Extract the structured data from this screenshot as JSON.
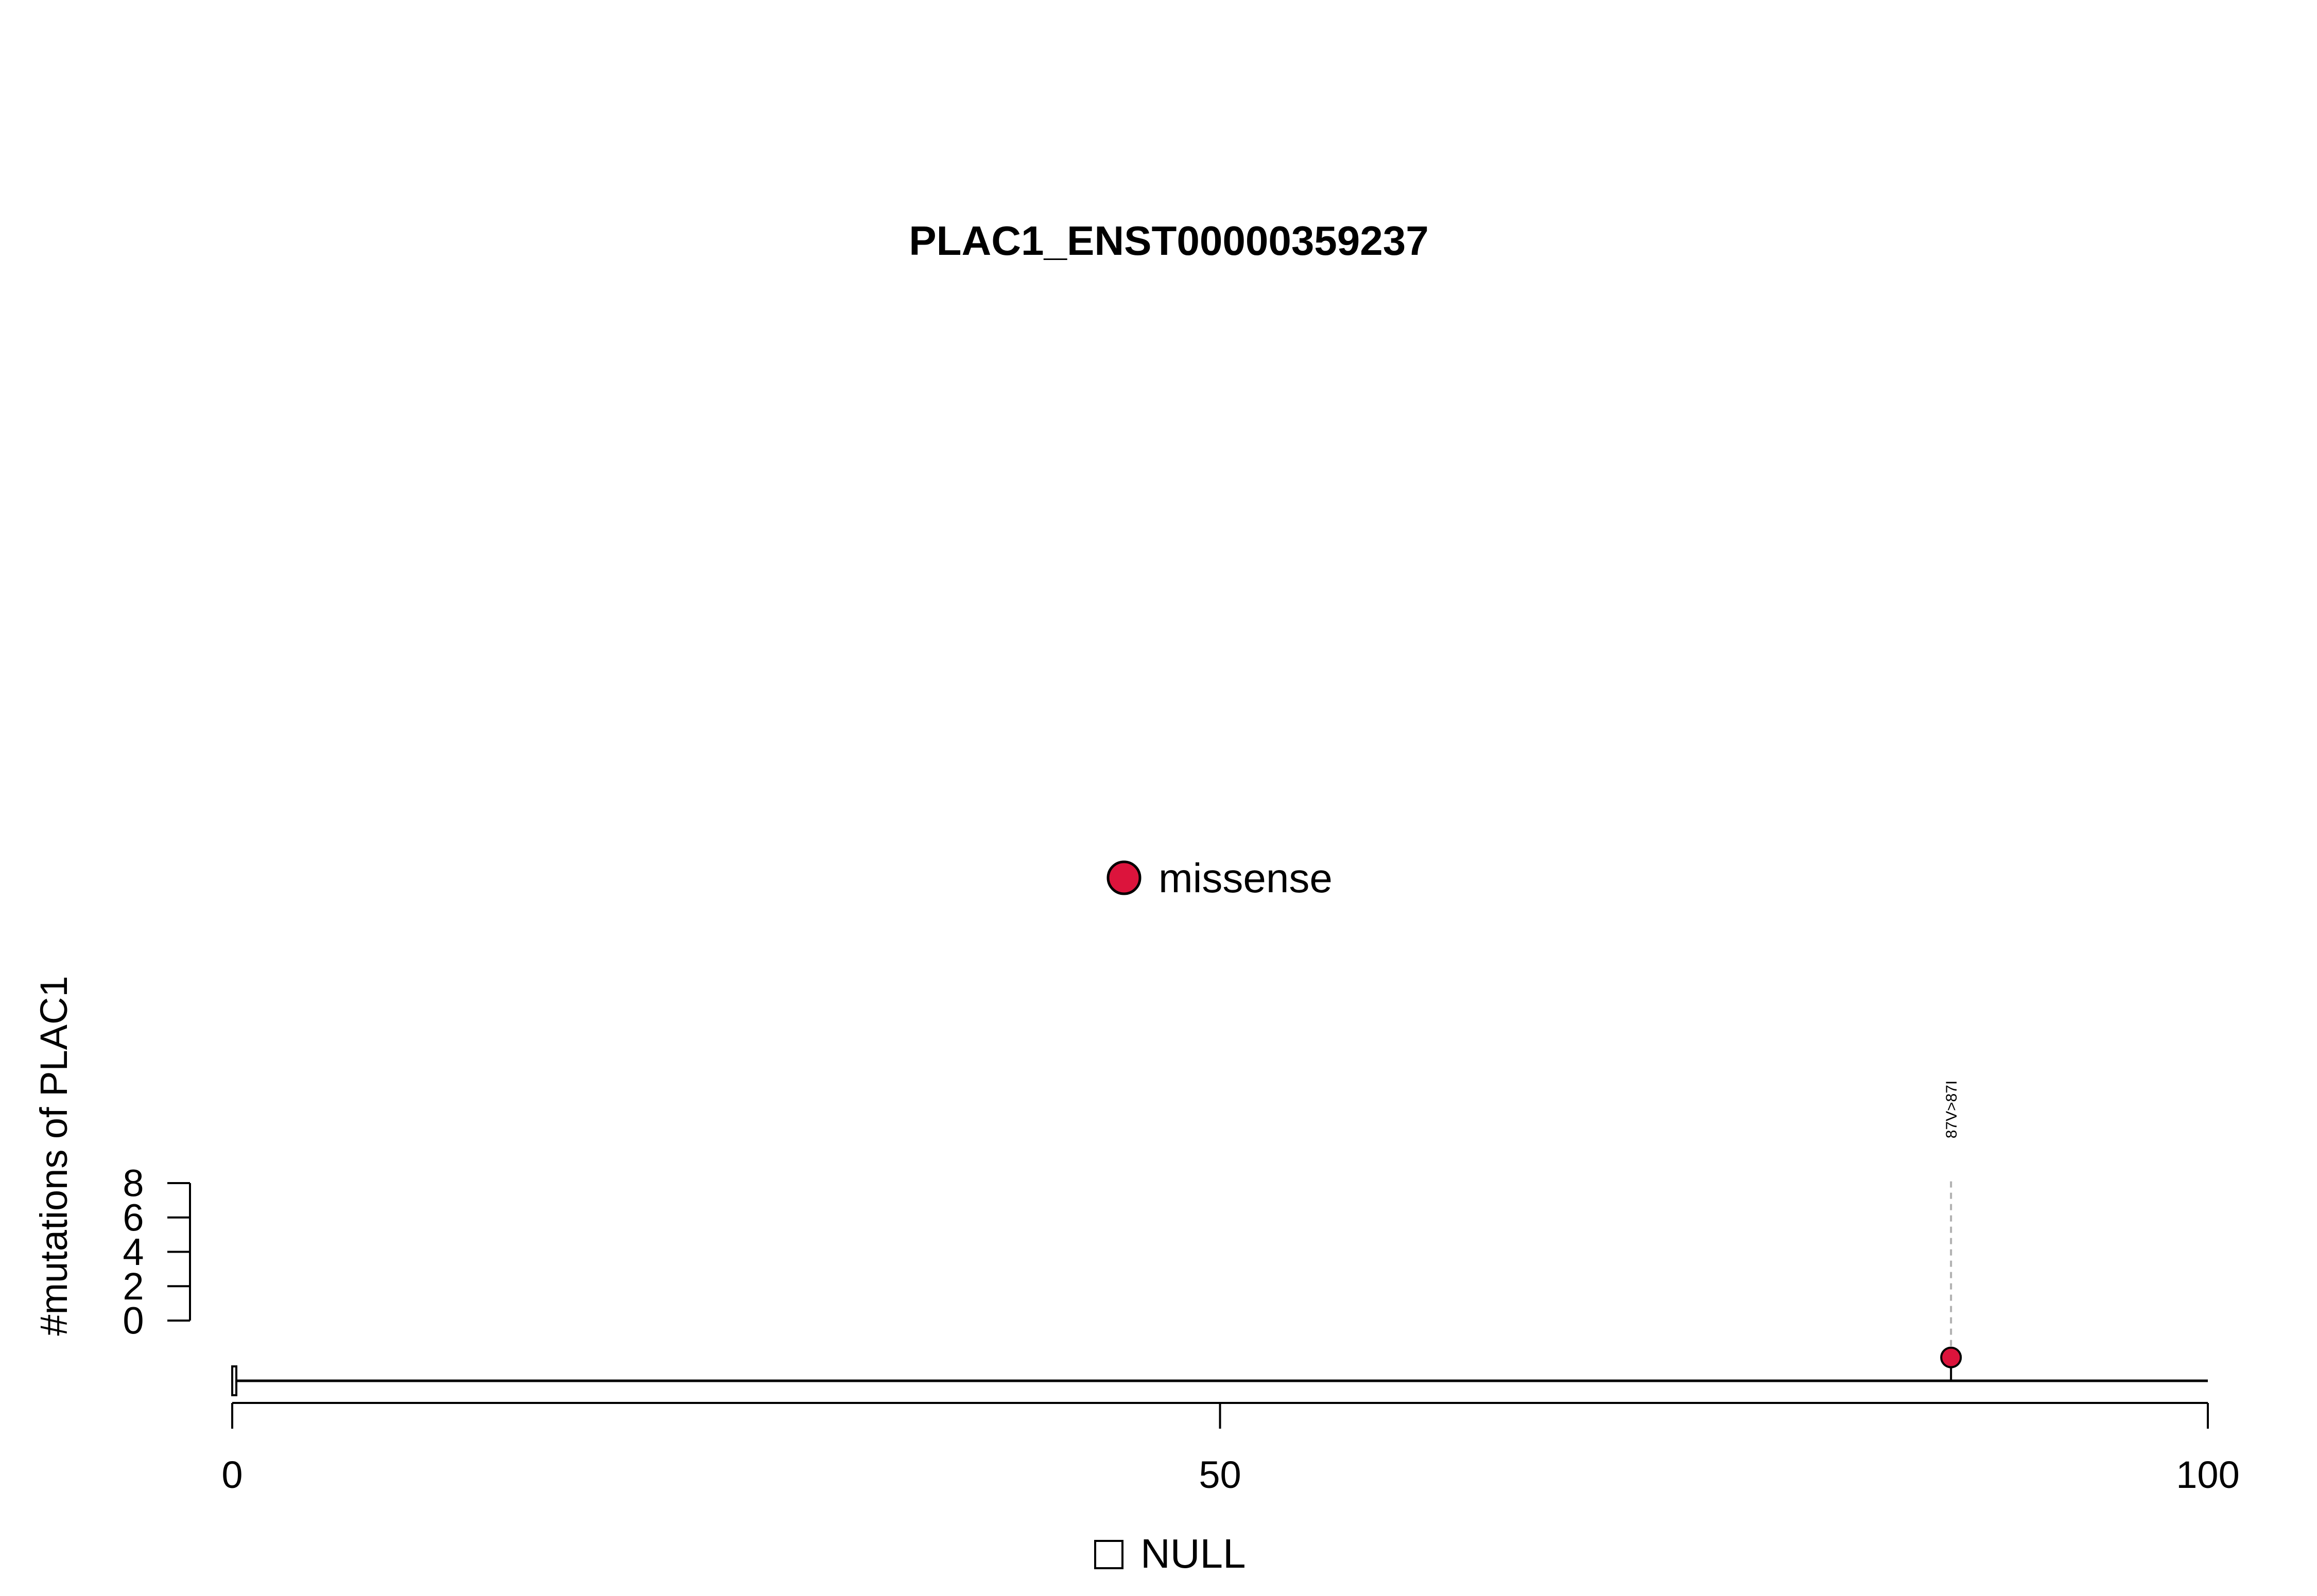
{
  "chart_data": {
    "type": "lollipop",
    "title": "PLAC1_ENST00000359237",
    "ylabel": "#mutations of PLAC1",
    "xlabel": "",
    "xlim": [
      0,
      100
    ],
    "x_ticks": [
      0,
      50,
      100
    ],
    "ylim": [
      0,
      8
    ],
    "y_ticks": [
      0,
      2,
      4,
      6,
      8
    ],
    "legend": {
      "mutation_types": [
        {
          "label": "missense",
          "color": "#DC143C"
        }
      ],
      "domains": [
        {
          "label": "NULL",
          "color": "#FFFFFF"
        }
      ]
    },
    "mutations": [
      {
        "position": 87,
        "count": 1,
        "type": "missense",
        "label": "87V>87I",
        "color": "#DC143C"
      }
    ],
    "domain_regions": [
      {
        "name": "NULL",
        "start": 0,
        "end": 0.2
      }
    ]
  }
}
